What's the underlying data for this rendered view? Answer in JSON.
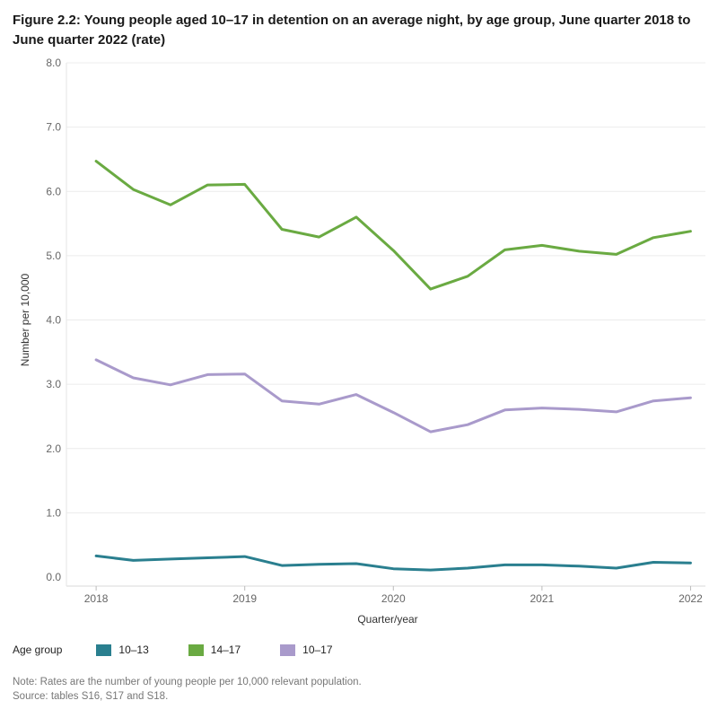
{
  "title": "Figure 2.2: Young people aged 10–17 in detention on an average night, by age group, June quarter 2018 to June quarter 2022 (rate)",
  "legend": {
    "title": "Age group",
    "items": [
      {
        "label": "10–13",
        "color": "#2a7f8f"
      },
      {
        "label": "14–17",
        "color": "#6aaa42"
      },
      {
        "label": "10–17",
        "color": "#a99acb"
      }
    ]
  },
  "notes": {
    "note": "Note: Rates are the number of young people per 10,000 relevant population.",
    "source": "Source: tables S16, S17 and S18."
  },
  "chart_data": {
    "type": "line",
    "title": "Figure 2.2: Young people aged 10–17 in detention on an average night, by age group, June quarter 2018 to June quarter 2022 (rate)",
    "xlabel": "Quarter/year",
    "ylabel": "Number per 10,000",
    "xlim": [
      2017.8,
      2022.1
    ],
    "ylim": [
      0,
      8
    ],
    "yticks": [
      "0.0",
      "1.0",
      "2.0",
      "3.0",
      "4.0",
      "5.0",
      "6.0",
      "7.0",
      "8.0"
    ],
    "xticks": [
      "2018",
      "2019",
      "2020",
      "2021",
      "2022"
    ],
    "grid": "horizontal",
    "legend_position": "bottom",
    "x": [
      2018,
      2018.25,
      2018.5,
      2018.75,
      2019,
      2019.25,
      2019.5,
      2019.75,
      2020,
      2020.25,
      2020.5,
      2020.75,
      2021,
      2021.25,
      2021.5,
      2021.75,
      2022
    ],
    "series": [
      {
        "name": "10–13",
        "color": "#2a7f8f",
        "values": [
          0.33,
          0.26,
          0.28,
          0.3,
          0.32,
          0.18,
          0.2,
          0.21,
          0.13,
          0.11,
          0.14,
          0.19,
          0.19,
          0.17,
          0.14,
          0.23,
          0.22
        ]
      },
      {
        "name": "14–17",
        "color": "#6aaa42",
        "values": [
          6.47,
          6.03,
          5.79,
          6.1,
          6.11,
          5.41,
          5.29,
          5.6,
          5.08,
          4.48,
          4.68,
          5.09,
          5.16,
          5.07,
          5.02,
          5.28,
          5.38
        ]
      },
      {
        "name": "10–17",
        "color": "#a99acb",
        "values": [
          3.38,
          3.1,
          2.99,
          3.15,
          3.16,
          2.74,
          2.69,
          2.84,
          2.56,
          2.26,
          2.37,
          2.6,
          2.63,
          2.61,
          2.57,
          2.74,
          2.79
        ]
      }
    ]
  }
}
